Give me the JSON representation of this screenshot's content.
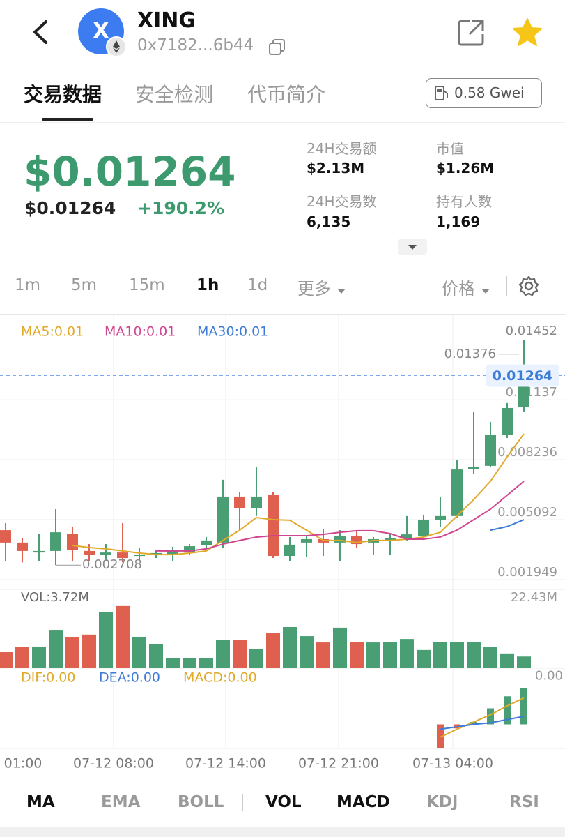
{
  "header": {
    "avatar": "X",
    "token": "XING",
    "address": "0x7182...6b44"
  },
  "tabs": [
    "交易数据",
    "安全检测",
    "代币简介"
  ],
  "gas": "0.58 Gwei",
  "price": {
    "main": "$0.01264",
    "sub": "$0.01264",
    "change": "+190.2%"
  },
  "stats": [
    {
      "label": "24H交易额",
      "value": "$2.13M"
    },
    {
      "label": "市值",
      "value": "$1.26M"
    },
    {
      "label": "24H交易数",
      "value": "6,135"
    },
    {
      "label": "持有人数",
      "value": "1,169"
    }
  ],
  "intervals": [
    "1m",
    "5m",
    "15m",
    "1h",
    "1d",
    "更多"
  ],
  "price_mode": "价格",
  "chart_data": {
    "type": "candlestick",
    "open": [
      0.00454,
      0.00389,
      0.00337,
      0.00345,
      0.00436,
      0.00345,
      0.00323,
      0.00337,
      0.00319,
      0.00326,
      0.00326,
      0.00337,
      0.00374,
      0.00389,
      0.0063,
      0.00571,
      0.00637,
      0.00319,
      0.00389,
      0.00407,
      0.00389,
      0.00425,
      0.00389,
      0.004,
      0.00411,
      0.00425,
      0.00509,
      0.00528,
      0.00776,
      0.00791,
      0.00952,
      0.01101
    ],
    "high": [
      0.00491,
      0.00411,
      0.00436,
      0.00564,
      0.00473,
      0.00381,
      0.00381,
      0.00491,
      0.00363,
      0.00352,
      0.00367,
      0.00381,
      0.00418,
      0.00718,
      0.00655,
      0.00783,
      0.00655,
      0.00418,
      0.00425,
      0.00462,
      0.00454,
      0.00454,
      0.00418,
      0.00436,
      0.00528,
      0.00535,
      0.0063,
      0.0082,
      0.01076,
      0.01021,
      0.0112,
      0.01452
    ],
    "low": [
      0.0029,
      0.00285,
      0.0029,
      0.002708,
      0.0029,
      0.0029,
      0.0029,
      0.00285,
      0.0029,
      0.00308,
      0.0029,
      0.00326,
      0.00363,
      0.00363,
      0.00454,
      0.00528,
      0.00308,
      0.0029,
      0.00315,
      0.00319,
      0.0029,
      0.00363,
      0.00326,
      0.00326,
      0.004,
      0.00418,
      0.00473,
      0.0052,
      0.00747,
      0.00783,
      0.00937,
      0.01076
    ],
    "close": [
      0.00389,
      0.00345,
      0.00345,
      0.00443,
      0.00352,
      0.00323,
      0.00337,
      0.00308,
      0.00326,
      0.00334,
      0.00345,
      0.0037,
      0.004,
      0.0063,
      0.00571,
      0.0063,
      0.00319,
      0.00378,
      0.00407,
      0.00389,
      0.00425,
      0.00381,
      0.00407,
      0.00414,
      0.00432,
      0.00509,
      0.00528,
      0.00772,
      0.00787,
      0.00952,
      0.01094,
      0.01264
    ],
    "ylim": [
      0.00151,
      0.01569
    ],
    "yticks": [
      0.001949,
      0.005092,
      0.008236,
      0.01137
    ],
    "last_price": 0.01264,
    "high_marker": 0.01376,
    "up_color": "#4a9e73",
    "down_color": "#e0604f",
    "ma": [
      {
        "name": "MA5:0.01",
        "color": "#e0a92a",
        "values": [
          null,
          null,
          null,
          null,
          0.00374,
          0.00363,
          0.00356,
          0.00345,
          0.00334,
          0.00326,
          0.00326,
          0.00334,
          0.00345,
          0.004,
          0.00454,
          0.0052,
          0.00509,
          0.00506,
          0.00454,
          0.004,
          0.004,
          0.00389,
          0.004,
          0.004,
          0.00407,
          0.00418,
          0.00443,
          0.00528,
          0.00615,
          0.0071,
          0.00838,
          0.00959
        ]
      },
      {
        "name": "MA10:0.01",
        "color": "#d0458f",
        "values": [
          null,
          null,
          null,
          null,
          null,
          null,
          null,
          null,
          null,
          0.00345,
          0.00345,
          0.00345,
          0.00356,
          0.00381,
          0.004,
          0.00418,
          0.00425,
          0.00425,
          0.00425,
          0.00432,
          0.00443,
          0.00451,
          0.00451,
          0.00436,
          0.00407,
          0.00407,
          0.00418,
          0.00454,
          0.00509,
          0.00564,
          0.00637,
          0.0071
        ]
      },
      {
        "name": "MA30:0.01",
        "color": "#3d7cd6",
        "values": [
          null,
          null,
          null,
          null,
          null,
          null,
          null,
          null,
          null,
          null,
          null,
          null,
          null,
          null,
          null,
          null,
          null,
          null,
          null,
          null,
          null,
          null,
          null,
          null,
          null,
          null,
          null,
          null,
          null,
          0.00454,
          0.00473,
          0.00509
        ]
      }
    ],
    "x_labels": [
      "01:00",
      "07-12 08:00",
      "07-12 14:00",
      "07-12 21:00",
      "07-13 04:00"
    ],
    "volume": {
      "label": "VOL:3.72M",
      "values": [
        5.1,
        6.7,
        6.9,
        12.2,
        10.0,
        10.7,
        18.0,
        19.8,
        10.0,
        7.6,
        3.3,
        3.3,
        3.3,
        8.9,
        8.9,
        6.2,
        11.1,
        13.1,
        10.2,
        8.2,
        12.9,
        8.4,
        8.2,
        8.4,
        9.3,
        5.8,
        8.4,
        8.4,
        8.4,
        6.7,
        4.7,
        3.72
      ],
      "ylim": [
        0,
        22.43
      ],
      "yticks": [
        {
          "value": 22.43,
          "label": "22.43M"
        }
      ]
    },
    "macd": {
      "ylim": [
        -0.0003,
        0.0007
      ],
      "yticks": [
        {
          "value": 0.0006,
          "label": "0.00"
        }
      ],
      "series": [
        {
          "name": "DIF:0.00",
          "color": "#e0a92a",
          "values": [
            null,
            null,
            null,
            null,
            null,
            null,
            null,
            null,
            null,
            null,
            null,
            null,
            null,
            null,
            null,
            null,
            null,
            null,
            null,
            null,
            null,
            null,
            null,
            null,
            null,
            null,
            -0.00016,
            -6e-05,
            3e-05,
            0.00012,
            0.00023,
            0.00033
          ]
        },
        {
          "name": "DEA:0.00",
          "color": "#3d7cd6",
          "values": [
            null,
            null,
            null,
            null,
            null,
            null,
            null,
            null,
            null,
            null,
            null,
            null,
            null,
            null,
            null,
            null,
            null,
            null,
            null,
            null,
            null,
            null,
            null,
            null,
            null,
            null,
            -6e-05,
            -3e-05,
            0,
            2e-05,
            6e-05,
            0.0001
          ]
        }
      ],
      "histogram": {
        "name": "MACD:0.00",
        "color": "#e0a92a",
        "values": [
          null,
          null,
          null,
          null,
          null,
          null,
          null,
          null,
          null,
          null,
          null,
          null,
          null,
          null,
          null,
          null,
          null,
          null,
          null,
          null,
          null,
          null,
          null,
          null,
          null,
          null,
          -0.0003,
          -5e-05,
          3e-05,
          0.0002,
          0.00035,
          0.00045
        ]
      }
    }
  },
  "indicators": [
    "MA",
    "EMA",
    "BOLL",
    "VOL",
    "MACD",
    "KDJ",
    "RSI"
  ]
}
